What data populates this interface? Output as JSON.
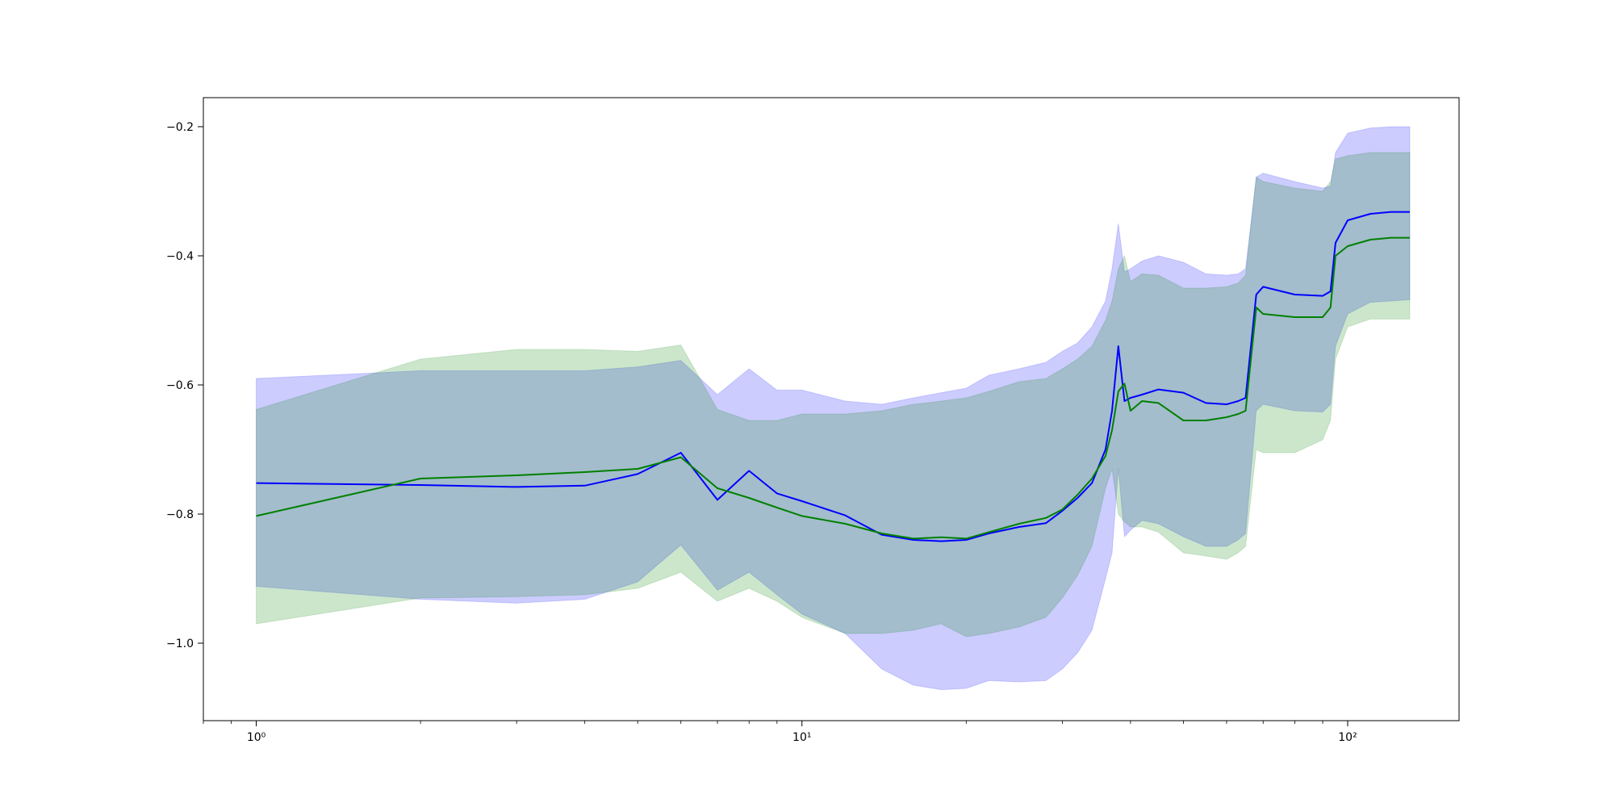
{
  "chart_data": {
    "type": "line",
    "title": "",
    "xlabel": "",
    "ylabel": "",
    "xscale": "log",
    "xlim": [
      0.8,
      160
    ],
    "ylim": [
      -1.12,
      -0.155
    ],
    "grid": false,
    "xticks": [
      {
        "value": 1,
        "label": "10⁰"
      },
      {
        "value": 10,
        "label": "10¹"
      },
      {
        "value": 100,
        "label": "10²"
      }
    ],
    "yticks": [
      {
        "value": -0.2,
        "label": "−0.2"
      },
      {
        "value": -0.4,
        "label": "−0.4"
      },
      {
        "value": -0.6,
        "label": "−0.6"
      },
      {
        "value": -0.8,
        "label": "−0.8"
      },
      {
        "value": -1.0,
        "label": "−1.0"
      }
    ],
    "series": [
      {
        "color": "#0000ff",
        "band_color": "#0000ff",
        "band_opacity": 0.2,
        "x": [
          1,
          2,
          3,
          4,
          5,
          6,
          7,
          8,
          9,
          10,
          12,
          14,
          16,
          18,
          20,
          22,
          25,
          28,
          30,
          32,
          34,
          36,
          37,
          38,
          39,
          40,
          42,
          45,
          50,
          55,
          60,
          63,
          65,
          68,
          70,
          80,
          90,
          93,
          95,
          100,
          110,
          120,
          130
        ],
        "mean": [
          -0.752,
          -0.755,
          -0.758,
          -0.756,
          -0.738,
          -0.705,
          -0.778,
          -0.733,
          -0.768,
          -0.78,
          -0.802,
          -0.832,
          -0.84,
          -0.842,
          -0.84,
          -0.83,
          -0.82,
          -0.814,
          -0.795,
          -0.775,
          -0.752,
          -0.7,
          -0.64,
          -0.54,
          -0.625,
          -0.62,
          -0.615,
          -0.607,
          -0.612,
          -0.628,
          -0.63,
          -0.625,
          -0.62,
          -0.46,
          -0.448,
          -0.46,
          -0.462,
          -0.455,
          -0.38,
          -0.345,
          -0.335,
          -0.332,
          -0.332
        ],
        "upper": [
          -0.59,
          -0.578,
          -0.578,
          -0.578,
          -0.572,
          -0.562,
          -0.615,
          -0.575,
          -0.608,
          -0.608,
          -0.625,
          -0.63,
          -0.62,
          -0.612,
          -0.605,
          -0.585,
          -0.575,
          -0.565,
          -0.548,
          -0.535,
          -0.51,
          -0.47,
          -0.42,
          -0.35,
          -0.425,
          -0.42,
          -0.408,
          -0.4,
          -0.41,
          -0.428,
          -0.43,
          -0.428,
          -0.42,
          -0.278,
          -0.272,
          -0.285,
          -0.295,
          -0.292,
          -0.24,
          -0.21,
          -0.202,
          -0.2,
          -0.2
        ],
        "lower": [
          -0.912,
          -0.932,
          -0.938,
          -0.932,
          -0.905,
          -0.848,
          -0.918,
          -0.89,
          -0.925,
          -0.955,
          -0.985,
          -1.04,
          -1.065,
          -1.072,
          -1.07,
          -1.058,
          -1.06,
          -1.058,
          -1.04,
          -1.015,
          -0.98,
          -0.9,
          -0.86,
          -0.73,
          -0.835,
          -0.825,
          -0.81,
          -0.815,
          -0.835,
          -0.85,
          -0.85,
          -0.84,
          -0.83,
          -0.64,
          -0.63,
          -0.64,
          -0.642,
          -0.63,
          -0.54,
          -0.49,
          -0.472,
          -0.47,
          -0.468
        ]
      },
      {
        "color": "#008000",
        "band_color": "#008000",
        "band_opacity": 0.2,
        "x": [
          1,
          2,
          3,
          4,
          5,
          6,
          7,
          8,
          9,
          10,
          12,
          14,
          16,
          18,
          20,
          22,
          25,
          28,
          30,
          32,
          34,
          36,
          37,
          38,
          39,
          40,
          42,
          45,
          50,
          55,
          60,
          63,
          65,
          68,
          70,
          80,
          90,
          93,
          95,
          100,
          110,
          120,
          130
        ],
        "mean": [
          -0.803,
          -0.745,
          -0.74,
          -0.735,
          -0.73,
          -0.712,
          -0.76,
          -0.775,
          -0.79,
          -0.803,
          -0.815,
          -0.83,
          -0.838,
          -0.836,
          -0.838,
          -0.828,
          -0.815,
          -0.806,
          -0.793,
          -0.77,
          -0.745,
          -0.71,
          -0.67,
          -0.61,
          -0.598,
          -0.64,
          -0.625,
          -0.628,
          -0.655,
          -0.655,
          -0.65,
          -0.645,
          -0.64,
          -0.48,
          -0.49,
          -0.495,
          -0.495,
          -0.48,
          -0.4,
          -0.385,
          -0.375,
          -0.372,
          -0.372
        ],
        "upper": [
          -0.638,
          -0.56,
          -0.545,
          -0.545,
          -0.548,
          -0.538,
          -0.638,
          -0.655,
          -0.655,
          -0.645,
          -0.645,
          -0.64,
          -0.63,
          -0.625,
          -0.62,
          -0.61,
          -0.595,
          -0.59,
          -0.575,
          -0.56,
          -0.54,
          -0.5,
          -0.47,
          -0.42,
          -0.4,
          -0.44,
          -0.428,
          -0.43,
          -0.45,
          -0.45,
          -0.448,
          -0.442,
          -0.43,
          -0.278,
          -0.285,
          -0.295,
          -0.3,
          -0.285,
          -0.25,
          -0.245,
          -0.24,
          -0.24,
          -0.24
        ],
        "lower": [
          -0.97,
          -0.93,
          -0.928,
          -0.925,
          -0.915,
          -0.89,
          -0.935,
          -0.915,
          -0.935,
          -0.96,
          -0.985,
          -0.985,
          -0.98,
          -0.97,
          -0.99,
          -0.985,
          -0.975,
          -0.96,
          -0.93,
          -0.895,
          -0.85,
          -0.76,
          -0.73,
          -0.8,
          -0.812,
          -0.82,
          -0.82,
          -0.828,
          -0.86,
          -0.865,
          -0.87,
          -0.86,
          -0.85,
          -0.7,
          -0.705,
          -0.705,
          -0.685,
          -0.655,
          -0.56,
          -0.51,
          -0.498,
          -0.498,
          -0.498
        ]
      }
    ]
  }
}
